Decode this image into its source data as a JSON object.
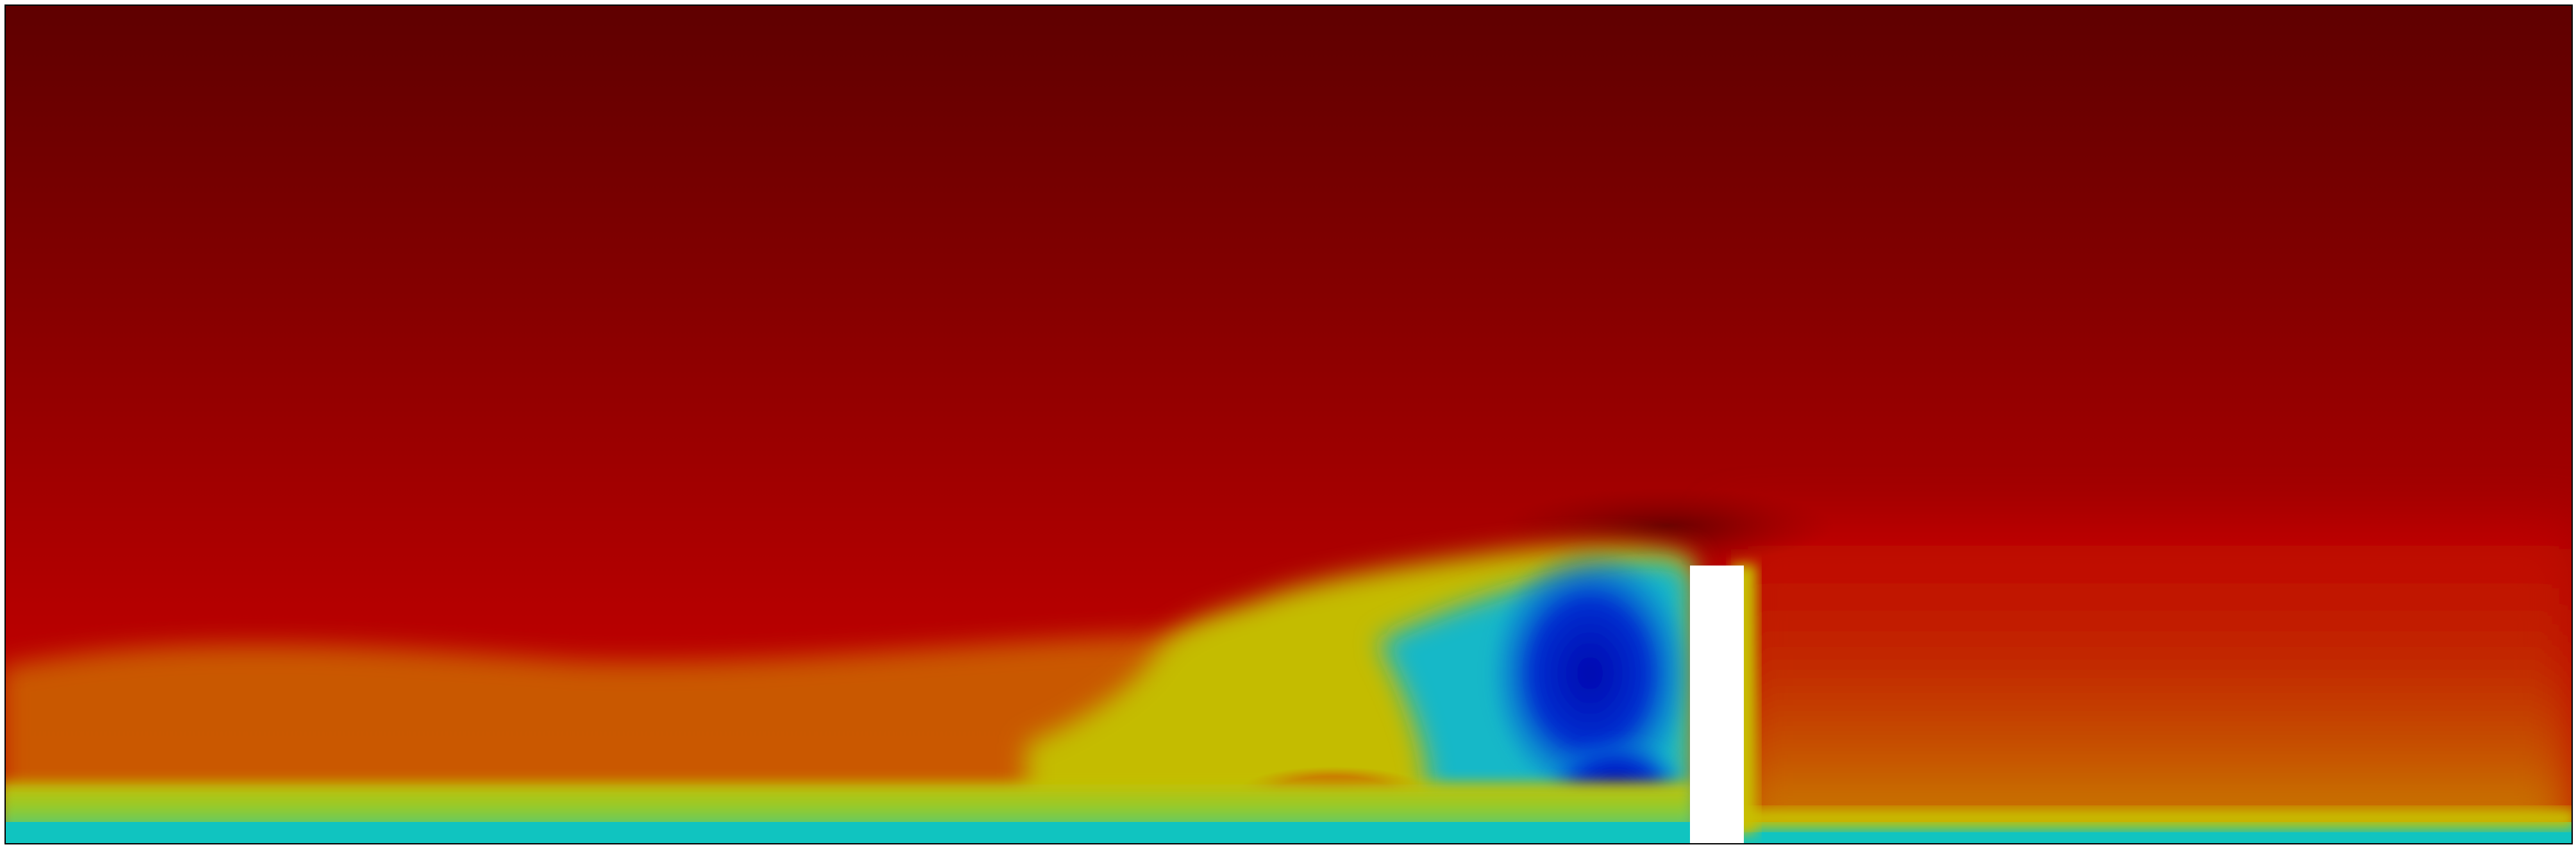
{
  "figure": {
    "colormap": "jet",
    "colors": {
      "background": "#ffffff",
      "top_dark": "#5e0000",
      "mid_red": "#a50000",
      "bright_red": "#c20000",
      "orange": "#d06000",
      "yellow": "#c8c000",
      "cyan": "#10c0c0",
      "blue": "#0010b0",
      "outline": "#000000",
      "obstacle": "#ffffff"
    }
  }
}
